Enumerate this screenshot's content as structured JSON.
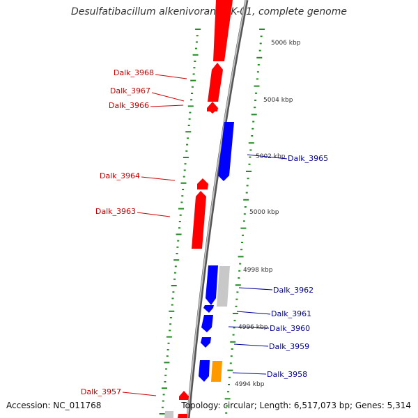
{
  "title": "Desulfatibacillum alkenivorans AK-01, complete genome",
  "footer": {
    "accession": "Accession: NC_011768",
    "topology": "Topology: circular; Length: 6,517,073 bp; Genes: 5,314"
  },
  "colors": {
    "forward_gene": "#ff0000",
    "reverse_gene": "#0000ff",
    "grey_feature": "#c8c8c8",
    "orange_feature": "#ff9900",
    "tick_marks": "#228b22",
    "backbone": "#808080",
    "label_forward": "#cc0000",
    "label_reverse": "#000099"
  },
  "scale_labels": [
    "5006 kbp",
    "5004 kbp",
    "5002 kbp",
    "5000 kbp",
    "4998 kbp",
    "4996 kbp",
    "4994 kbp"
  ],
  "genes": [
    {
      "label": "Dalk_3968",
      "strand": "forward"
    },
    {
      "label": "Dalk_3967",
      "strand": "forward"
    },
    {
      "label": "Dalk_3966",
      "strand": "forward"
    },
    {
      "label": "Dalk_3965",
      "strand": "reverse"
    },
    {
      "label": "Dalk_3964",
      "strand": "forward"
    },
    {
      "label": "Dalk_3963",
      "strand": "forward"
    },
    {
      "label": "Dalk_3962",
      "strand": "reverse"
    },
    {
      "label": "Dalk_3961",
      "strand": "reverse"
    },
    {
      "label": "Dalk_3960",
      "strand": "reverse"
    },
    {
      "label": "Dalk_3959",
      "strand": "reverse"
    },
    {
      "label": "Dalk_3958",
      "strand": "reverse"
    },
    {
      "label": "Dalk_3957",
      "strand": "forward"
    }
  ]
}
